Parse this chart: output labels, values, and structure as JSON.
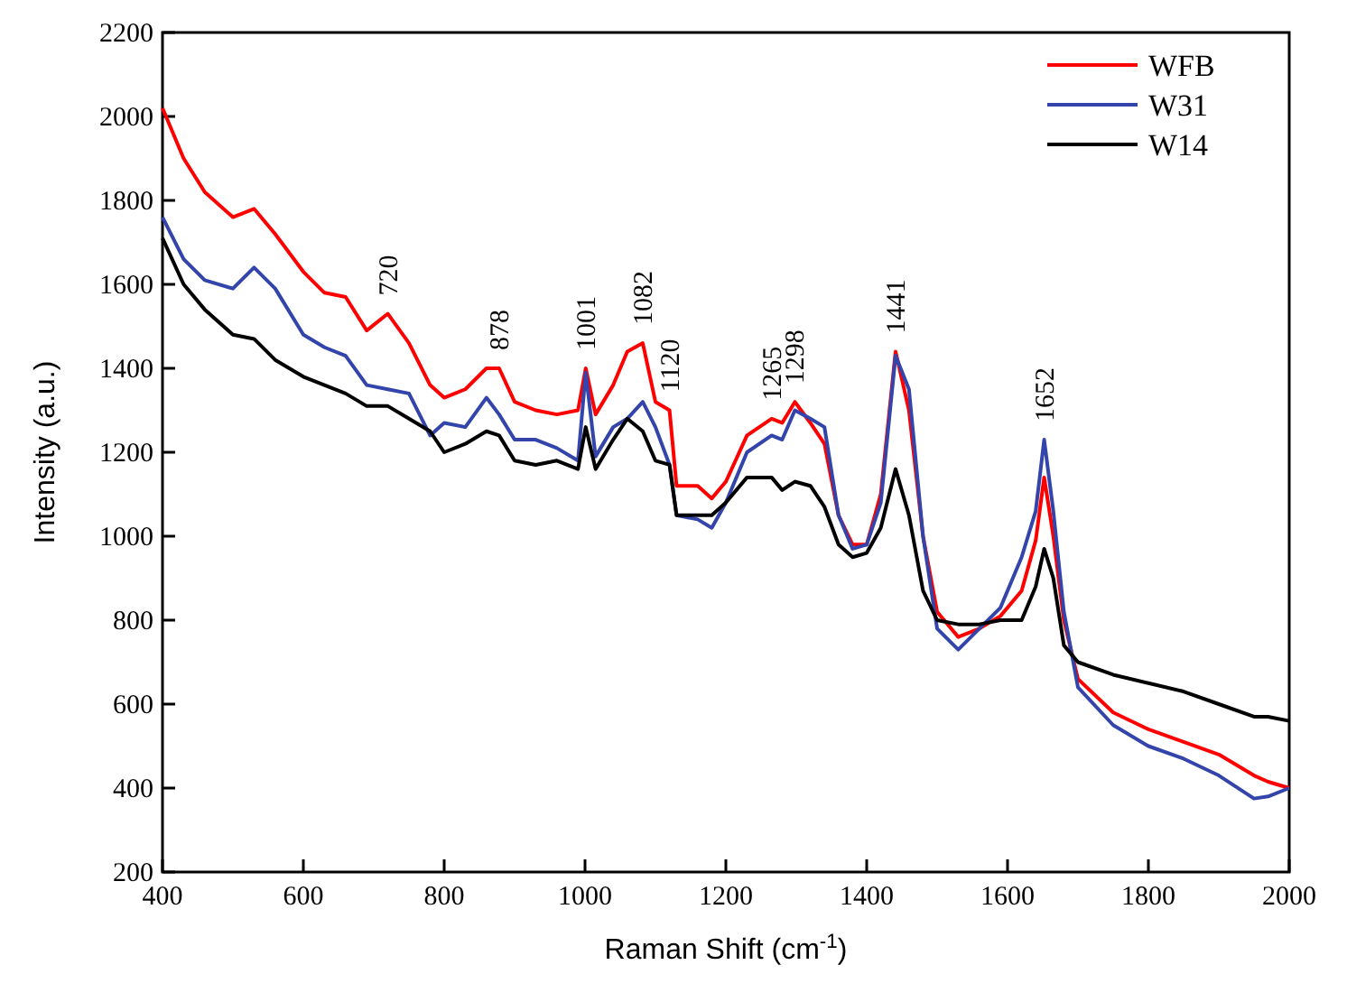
{
  "chart_data": {
    "type": "line",
    "xlabel": "Raman Shift (cm$^{-1}$)",
    "ylabel": "Intensity (a.u.)",
    "x": [
      400,
      430,
      460,
      500,
      530,
      560,
      600,
      630,
      660,
      690,
      720,
      750,
      780,
      800,
      830,
      860,
      878,
      900,
      930,
      960,
      990,
      1001,
      1015,
      1040,
      1060,
      1082,
      1100,
      1120,
      1130,
      1160,
      1180,
      1200,
      1230,
      1265,
      1280,
      1298,
      1320,
      1340,
      1360,
      1380,
      1400,
      1420,
      1441,
      1460,
      1480,
      1500,
      1530,
      1560,
      1590,
      1620,
      1640,
      1652,
      1665,
      1680,
      1700,
      1750,
      1800,
      1850,
      1900,
      1950,
      1970,
      2000
    ],
    "series": [
      {
        "name": "WFB",
        "color": "#ff0000",
        "values": [
          2020,
          1900,
          1820,
          1760,
          1780,
          1720,
          1630,
          1580,
          1570,
          1490,
          1530,
          1460,
          1360,
          1330,
          1350,
          1400,
          1400,
          1320,
          1300,
          1290,
          1300,
          1400,
          1290,
          1360,
          1440,
          1460,
          1320,
          1300,
          1120,
          1120,
          1090,
          1130,
          1240,
          1280,
          1270,
          1320,
          1270,
          1220,
          1050,
          980,
          980,
          1100,
          1440,
          1300,
          1000,
          820,
          760,
          780,
          810,
          870,
          990,
          1140,
          1000,
          800,
          660,
          580,
          540,
          510,
          480,
          430,
          415,
          400
        ]
      },
      {
        "name": "W31",
        "color": "#3344aa",
        "values": [
          1760,
          1660,
          1610,
          1590,
          1640,
          1590,
          1480,
          1450,
          1430,
          1360,
          1350,
          1340,
          1240,
          1270,
          1260,
          1330,
          1290,
          1230,
          1230,
          1210,
          1180,
          1390,
          1190,
          1260,
          1280,
          1320,
          1260,
          1170,
          1050,
          1040,
          1020,
          1080,
          1200,
          1240,
          1230,
          1300,
          1280,
          1260,
          1050,
          970,
          980,
          1080,
          1430,
          1350,
          1000,
          780,
          730,
          780,
          830,
          950,
          1060,
          1230,
          1060,
          820,
          640,
          550,
          500,
          470,
          430,
          375,
          380,
          400
        ]
      },
      {
        "name": "W14",
        "color": "#000000",
        "values": [
          1710,
          1600,
          1540,
          1480,
          1470,
          1420,
          1380,
          1360,
          1340,
          1310,
          1310,
          1280,
          1250,
          1200,
          1220,
          1250,
          1240,
          1180,
          1170,
          1180,
          1160,
          1260,
          1160,
          1230,
          1280,
          1250,
          1180,
          1170,
          1050,
          1050,
          1050,
          1080,
          1140,
          1140,
          1110,
          1130,
          1120,
          1070,
          980,
          950,
          960,
          1020,
          1160,
          1050,
          870,
          800,
          790,
          790,
          800,
          800,
          880,
          970,
          900,
          740,
          700,
          670,
          650,
          630,
          600,
          570,
          570,
          560
        ]
      }
    ],
    "xlim": [
      400,
      2000
    ],
    "ylim": [
      200,
      2200
    ],
    "xticks": [
      400,
      600,
      800,
      1000,
      1200,
      1400,
      1600,
      1800,
      2000
    ],
    "yticks": [
      200,
      400,
      600,
      800,
      1000,
      1200,
      1400,
      1600,
      1800,
      2000,
      2200
    ],
    "legend": "top right",
    "line_style": "solid",
    "grid": false,
    "annotations": [
      {
        "text": "720",
        "x": 720,
        "y": 1530
      },
      {
        "text": "878",
        "x": 878,
        "y": 1400
      },
      {
        "text": "1001",
        "x": 1001,
        "y": 1400
      },
      {
        "text": "1082",
        "x": 1082,
        "y": 1460
      },
      {
        "text": "1120",
        "x": 1120,
        "y": 1300
      },
      {
        "text": "1265",
        "x": 1265,
        "y": 1280
      },
      {
        "text": "1298",
        "x": 1298,
        "y": 1320
      },
      {
        "text": "1441",
        "x": 1441,
        "y": 1440
      },
      {
        "text": "1652",
        "x": 1652,
        "y": 1230
      }
    ]
  }
}
